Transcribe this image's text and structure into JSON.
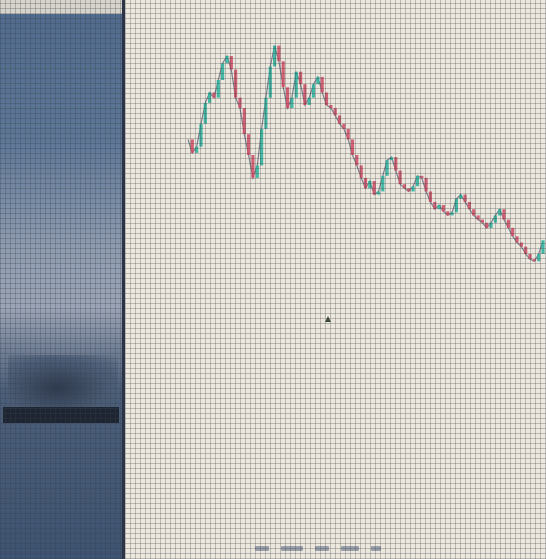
{
  "sidebar": {
    "label": "",
    "colors": {
      "panel": "#5d7797",
      "label_bar": "#1d2533"
    }
  },
  "chart": {
    "type": "candlestick",
    "colors": {
      "up": "#d04a63",
      "down": "#27b29c",
      "wick": "#7a7f8c"
    }
  },
  "icons": {
    "cursor": "cursor-icon"
  },
  "chart_data": {
    "type": "line",
    "x": [
      1,
      2,
      3,
      4,
      5,
      6,
      7,
      8,
      9,
      10,
      11,
      12,
      13,
      14,
      15,
      16,
      17,
      18,
      19,
      20,
      21,
      22,
      23,
      24,
      25,
      26,
      27,
      28,
      29,
      30,
      31,
      32,
      33,
      34,
      35,
      36,
      37,
      38,
      39,
      40,
      41,
      42,
      43,
      44,
      45,
      46,
      47,
      48,
      49,
      50,
      51,
      52,
      53,
      54,
      55,
      56,
      57,
      58,
      59,
      60,
      61,
      62,
      63,
      64,
      65,
      66,
      67,
      68,
      69,
      70,
      71,
      72,
      73,
      74,
      75,
      76,
      77,
      78,
      79,
      80,
      81,
      82,
      83
    ],
    "values": [
      165,
      152,
      158,
      180,
      200,
      210,
      205,
      222,
      238,
      245,
      232,
      205,
      195,
      170,
      150,
      128,
      140,
      175,
      205,
      235,
      255,
      240,
      215,
      195,
      205,
      230,
      218,
      198,
      205,
      218,
      225,
      210,
      198,
      195,
      188,
      180,
      175,
      165,
      150,
      140,
      128,
      118,
      125,
      112,
      115,
      130,
      145,
      148,
      135,
      122,
      118,
      115,
      120,
      130,
      128,
      115,
      105,
      98,
      102,
      96,
      92,
      95,
      108,
      112,
      105,
      98,
      92,
      88,
      85,
      80,
      85,
      92,
      98,
      88,
      80,
      72,
      66,
      62,
      55,
      50,
      48,
      55,
      68
    ],
    "xlabel": "",
    "ylabel": "",
    "grid": true
  }
}
